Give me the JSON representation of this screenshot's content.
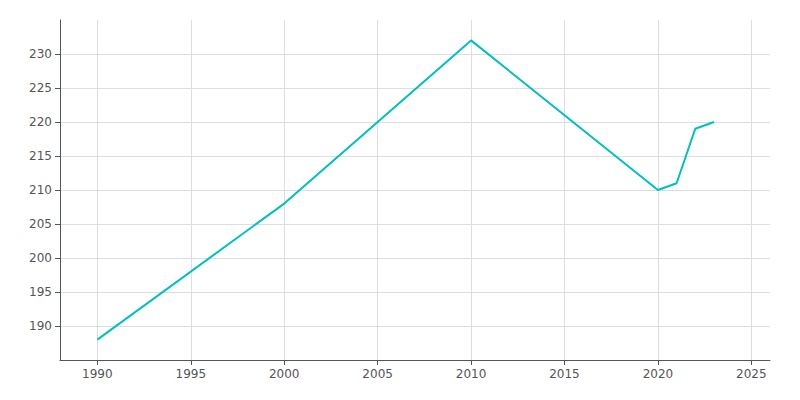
{
  "chart_data": {
    "type": "line",
    "x": [
      1990,
      2000,
      2010,
      2020,
      2021,
      2022,
      2023
    ],
    "values": [
      188,
      208,
      232,
      210,
      211,
      219,
      220
    ],
    "color": "#00BFBF",
    "xlim": [
      1988,
      2026
    ],
    "xticks": [
      1990,
      1995,
      2000,
      2005,
      2010,
      2015,
      2020,
      2025
    ],
    "ylim": [
      185,
      235
    ],
    "yticks": [
      190,
      195,
      200,
      205,
      210,
      215,
      220,
      225,
      230
    ],
    "grid": true
  }
}
